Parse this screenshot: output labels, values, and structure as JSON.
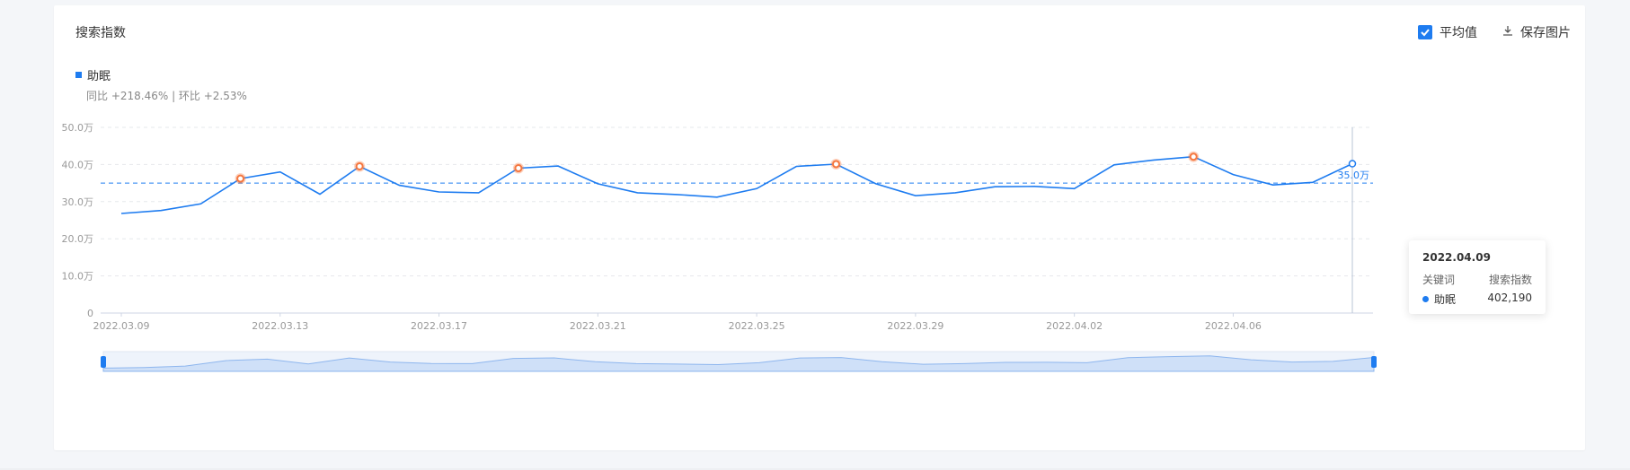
{
  "panel": {
    "title": "搜索指数"
  },
  "toolbar": {
    "average_label": "平均值",
    "average_checked": true,
    "save_label": "保存图片"
  },
  "legend": {
    "series_name": "助眠",
    "color": "#1e7cf0"
  },
  "stats": {
    "text": "同比 +218.46% | 环比 +2.53%"
  },
  "tooltip": {
    "date": "2022.04.09",
    "col_keyword": "关键词",
    "col_index": "搜索指数",
    "keyword": "助眠",
    "value": "402,190"
  },
  "icons": {
    "checkbox": "check-icon",
    "download": "download-icon"
  },
  "colors": {
    "line": "#1e7cf0",
    "highlight": "#f5773f",
    "zoom_fill": "#cfe0f8"
  },
  "chart_data": {
    "type": "line",
    "y_tick_labels": [
      "0",
      "10.0万",
      "20.0万",
      "30.0万",
      "40.0万",
      "50.0万"
    ],
    "ylim": [
      0,
      500000
    ],
    "x_tick_labels": [
      "2022.03.09",
      "2022.03.13",
      "2022.03.17",
      "2022.03.21",
      "2022.03.25",
      "2022.03.29",
      "2022.04.02",
      "2022.04.06"
    ],
    "x": [
      "2022.03.09",
      "2022.03.10",
      "2022.03.11",
      "2022.03.12",
      "2022.03.13",
      "2022.03.14",
      "2022.03.15",
      "2022.03.16",
      "2022.03.17",
      "2022.03.18",
      "2022.03.19",
      "2022.03.20",
      "2022.03.21",
      "2022.03.22",
      "2022.03.23",
      "2022.03.24",
      "2022.03.25",
      "2022.03.26",
      "2022.03.27",
      "2022.03.28",
      "2022.03.29",
      "2022.03.30",
      "2022.03.31",
      "2022.04.01",
      "2022.04.02",
      "2022.04.03",
      "2022.04.04",
      "2022.04.05",
      "2022.04.06",
      "2022.04.07",
      "2022.04.08",
      "2022.04.09"
    ],
    "series": [
      {
        "name": "助眠",
        "values": [
          268000,
          276000,
          294000,
          362000,
          380000,
          320000,
          395000,
          344000,
          326000,
          324000,
          390000,
          396000,
          348000,
          324000,
          319000,
          312000,
          335000,
          395000,
          401000,
          348000,
          316000,
          324000,
          340000,
          341000,
          335000,
          399000,
          412000,
          421000,
          373000,
          345000,
          352000,
          402190
        ]
      }
    ],
    "highlight_dates": [
      "2022.03.12",
      "2022.03.15",
      "2022.03.19",
      "2022.03.27",
      "2022.04.05"
    ],
    "average": {
      "value": 350000,
      "label": "35.0万"
    },
    "selected_date": "2022.04.09",
    "grid": true
  }
}
